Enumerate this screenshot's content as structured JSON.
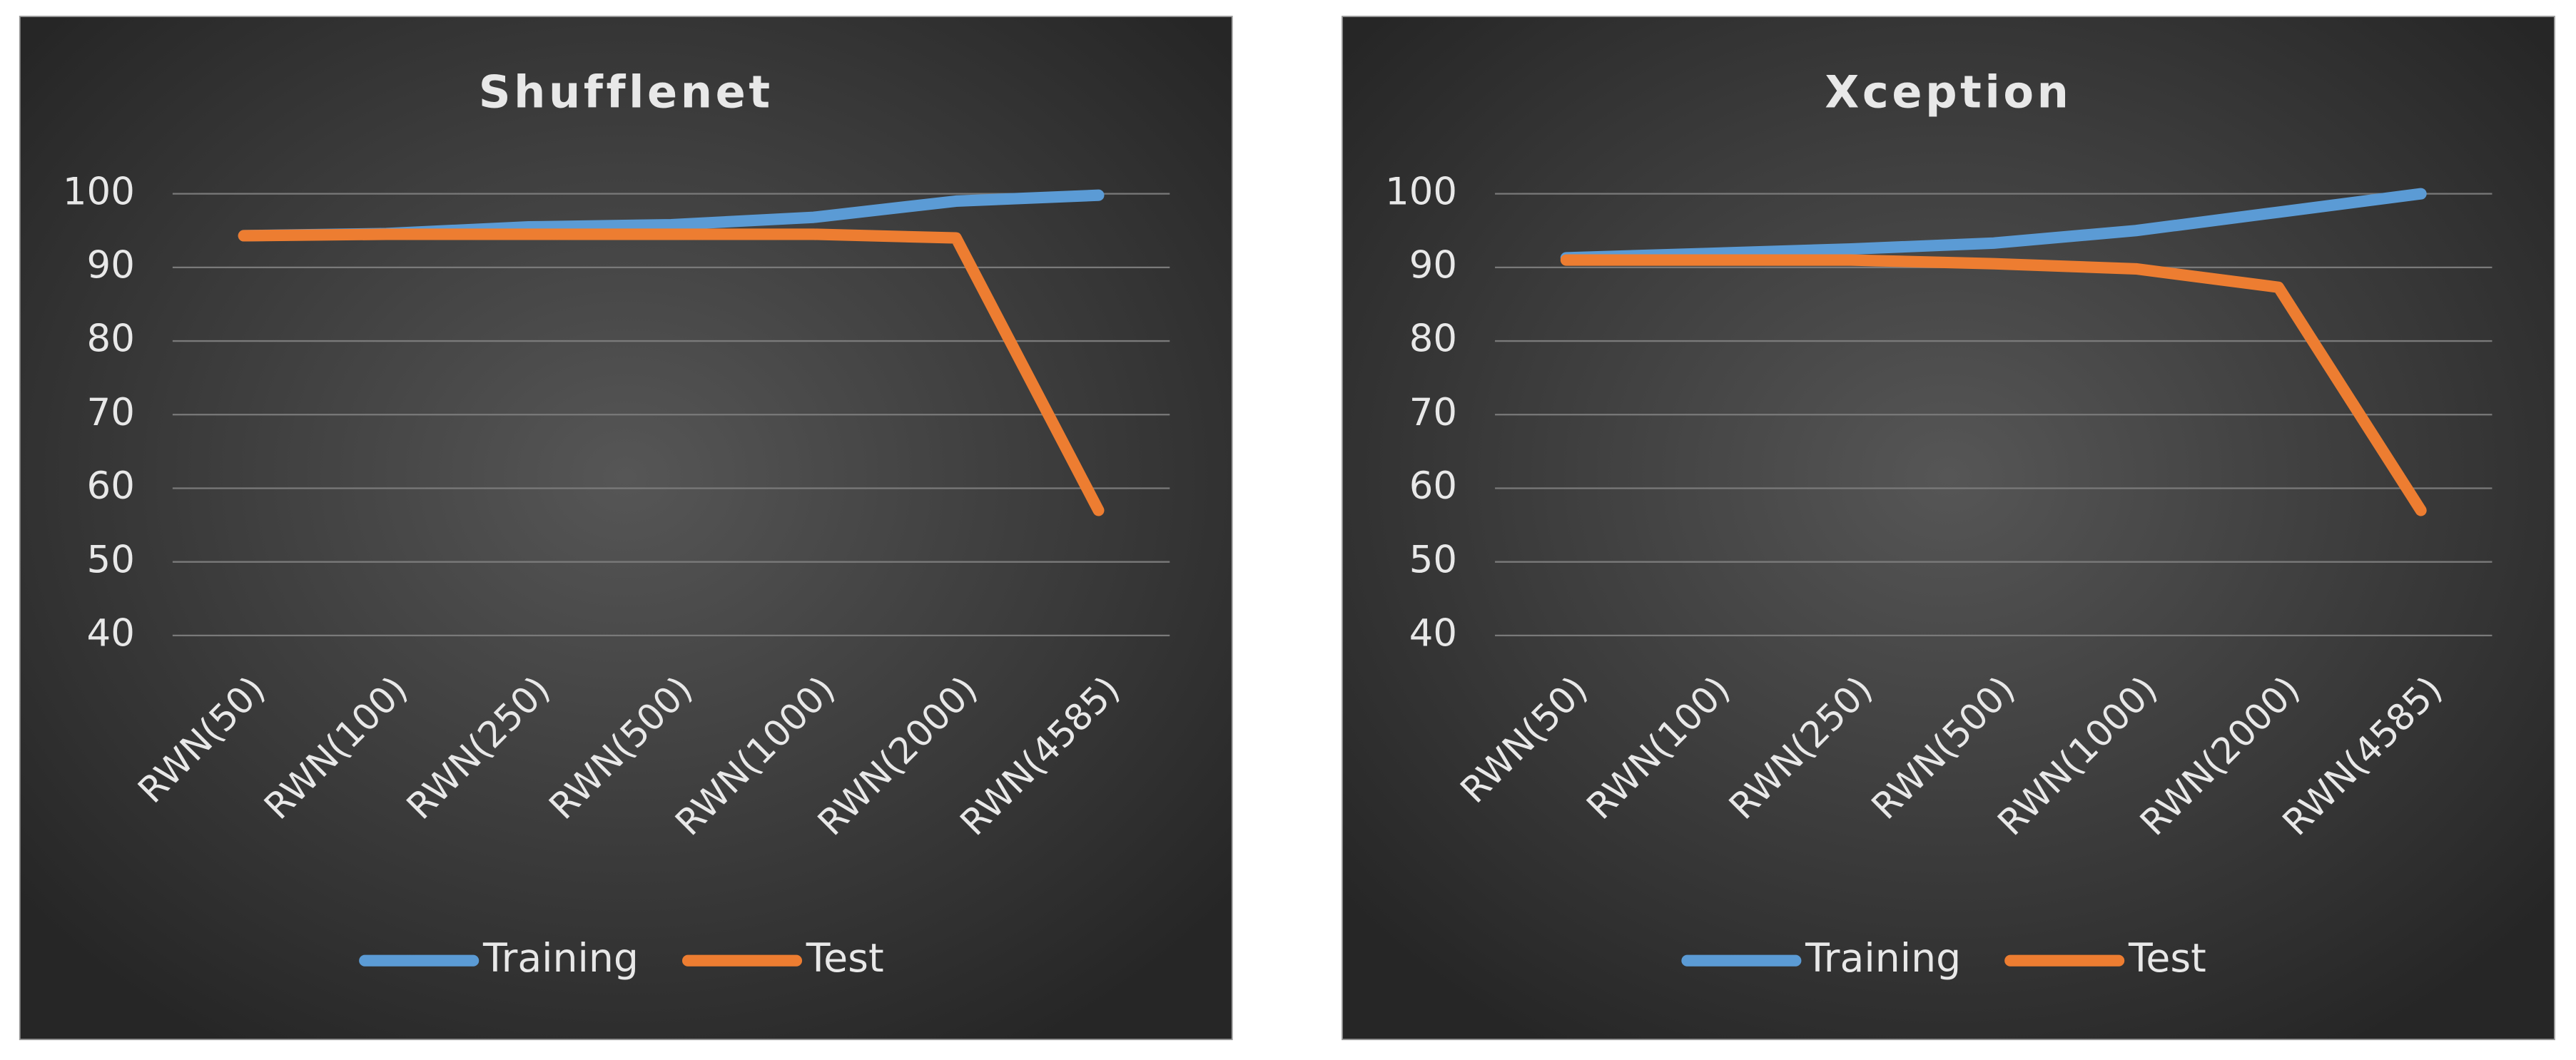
{
  "chart_data": [
    {
      "type": "line",
      "title": "Shufflenet",
      "categories": [
        "RWN(50)",
        "RWN(100)",
        "RWN(250)",
        "RWN(500)",
        "RWN(1000)",
        "RWN(2000)",
        "RWN(4585)"
      ],
      "series": [
        {
          "name": "Training",
          "color": "#5b9bd5",
          "values": [
            94.3,
            94.6,
            95.5,
            95.8,
            96.8,
            99,
            99.8
          ]
        },
        {
          "name": "Test",
          "color": "#ed7d31",
          "values": [
            94.3,
            94.5,
            94.5,
            94.5,
            94.5,
            94,
            57
          ]
        }
      ],
      "ylim": [
        40,
        100
      ],
      "yticks": [
        40,
        50,
        60,
        70,
        80,
        90,
        100
      ],
      "grid": true,
      "legend": "bottom"
    },
    {
      "type": "line",
      "title": "Xception",
      "categories": [
        "RWN(50)",
        "RWN(100)",
        "RWN(250)",
        "RWN(500)",
        "RWN(1000)",
        "RWN(2000)",
        "RWN(4585)"
      ],
      "series": [
        {
          "name": "Training",
          "color": "#5b9bd5",
          "values": [
            91.3,
            91.9,
            92.5,
            93.3,
            95,
            97.5,
            100
          ]
        },
        {
          "name": "Test",
          "color": "#ed7d31",
          "values": [
            91,
            91,
            91,
            90.5,
            89.8,
            87.3,
            57
          ]
        }
      ],
      "ylim": [
        40,
        100
      ],
      "yticks": [
        40,
        50,
        60,
        70,
        80,
        90,
        100
      ],
      "grid": true,
      "legend": "bottom"
    }
  ]
}
